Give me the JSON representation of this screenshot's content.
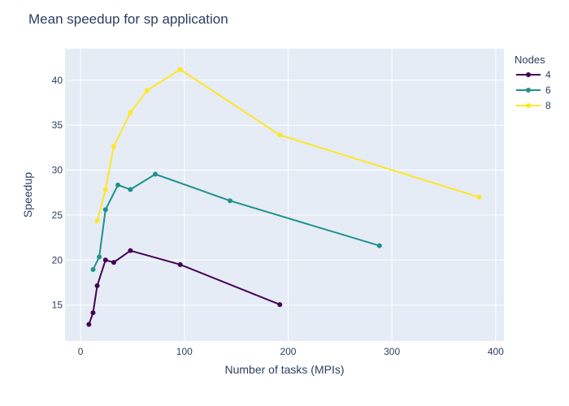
{
  "chart_data": {
    "type": "line",
    "title": "Mean speedup for sp application",
    "xlabel": "Number of tasks (MPIs)",
    "ylabel": "Speedup",
    "xlim": [
      -15,
      408
    ],
    "ylim": [
      11,
      43.5
    ],
    "xticks": [
      0,
      100,
      200,
      300,
      400
    ],
    "yticks": [
      15,
      20,
      25,
      30,
      35,
      40
    ],
    "grid": true,
    "legend": {
      "title": "Nodes",
      "placement": "top-right"
    },
    "series": [
      {
        "name": "4",
        "color": "#440154",
        "x": [
          8,
          12,
          16,
          24,
          32,
          48,
          96,
          192
        ],
        "y": [
          12.85,
          14.15,
          17.15,
          20.0,
          19.75,
          21.05,
          19.5,
          15.05
        ]
      },
      {
        "name": "6",
        "color": "#21918c",
        "x": [
          12,
          18,
          24,
          36,
          48,
          72,
          144,
          288
        ],
        "y": [
          18.95,
          20.35,
          25.6,
          28.35,
          27.85,
          29.55,
          26.6,
          21.6
        ]
      },
      {
        "name": "8",
        "color": "#fde725",
        "x": [
          16,
          24,
          32,
          48,
          64,
          96,
          192,
          384
        ],
        "y": [
          24.35,
          27.85,
          32.65,
          36.4,
          38.85,
          41.2,
          33.9,
          27.0
        ]
      }
    ]
  }
}
